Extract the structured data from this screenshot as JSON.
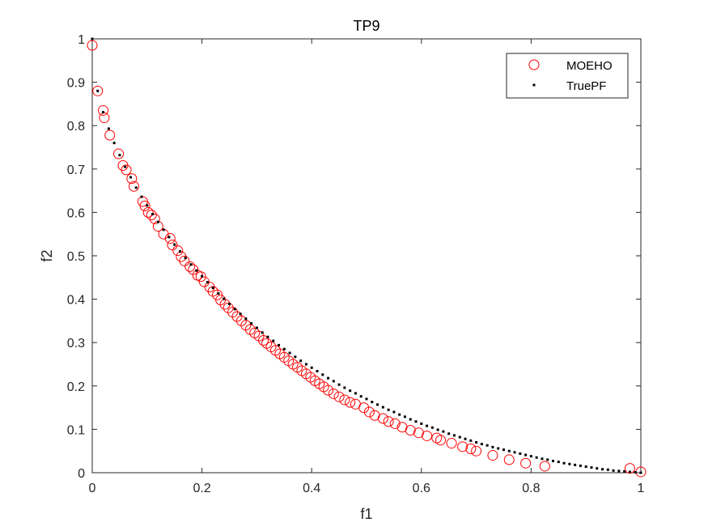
{
  "chart_data": {
    "type": "scatter",
    "title": "TP9",
    "xlabel": "f1",
    "ylabel": "f2",
    "xlim": [
      0,
      1
    ],
    "ylim": [
      0,
      1
    ],
    "xticks": [
      "0",
      "0.2",
      "0.4",
      "0.6",
      "0.8",
      "1"
    ],
    "yticks": [
      "0",
      "0.1",
      "0.2",
      "0.3",
      "0.4",
      "0.5",
      "0.6",
      "0.7",
      "0.8",
      "0.9",
      "1"
    ],
    "grid": false,
    "legend_position": "top-right",
    "series": [
      {
        "name": "MOEHO",
        "marker": "open-circle",
        "color": "#ff0000",
        "x": [
          0.0,
          0.01,
          0.02,
          0.022,
          0.032,
          0.048,
          0.056,
          0.062,
          0.072,
          0.076,
          0.092,
          0.096,
          0.102,
          0.108,
          0.114,
          0.12,
          0.13,
          0.142,
          0.146,
          0.156,
          0.162,
          0.168,
          0.178,
          0.184,
          0.192,
          0.198,
          0.204,
          0.214,
          0.22,
          0.228,
          0.234,
          0.242,
          0.248,
          0.256,
          0.264,
          0.272,
          0.28,
          0.288,
          0.296,
          0.304,
          0.312,
          0.318,
          0.326,
          0.334,
          0.342,
          0.35,
          0.358,
          0.366,
          0.374,
          0.382,
          0.39,
          0.398,
          0.406,
          0.414,
          0.422,
          0.43,
          0.44,
          0.45,
          0.46,
          0.47,
          0.48,
          0.495,
          0.505,
          0.515,
          0.53,
          0.54,
          0.552,
          0.565,
          0.58,
          0.595,
          0.61,
          0.628,
          0.635,
          0.655,
          0.675,
          0.69,
          0.7,
          0.73,
          0.76,
          0.79,
          0.825,
          0.98,
          1.0
        ],
        "y": [
          0.985,
          0.88,
          0.835,
          0.818,
          0.778,
          0.735,
          0.708,
          0.698,
          0.678,
          0.66,
          0.625,
          0.615,
          0.6,
          0.594,
          0.585,
          0.568,
          0.55,
          0.54,
          0.525,
          0.512,
          0.498,
          0.488,
          0.475,
          0.468,
          0.455,
          0.452,
          0.44,
          0.428,
          0.418,
          0.41,
          0.398,
          0.388,
          0.38,
          0.37,
          0.36,
          0.35,
          0.34,
          0.33,
          0.322,
          0.315,
          0.305,
          0.298,
          0.29,
          0.282,
          0.274,
          0.266,
          0.258,
          0.25,
          0.243,
          0.235,
          0.228,
          0.22,
          0.212,
          0.205,
          0.198,
          0.19,
          0.182,
          0.175,
          0.168,
          0.162,
          0.158,
          0.15,
          0.14,
          0.132,
          0.125,
          0.118,
          0.113,
          0.105,
          0.098,
          0.092,
          0.085,
          0.08,
          0.075,
          0.068,
          0.06,
          0.055,
          0.05,
          0.04,
          0.03,
          0.022,
          0.015,
          0.01,
          0.002
        ]
      },
      {
        "name": "TruePF",
        "marker": "dot",
        "color": "#000000",
        "x": [
          0.0,
          0.01,
          0.02,
          0.03,
          0.04,
          0.05,
          0.06,
          0.07,
          0.08,
          0.09,
          0.1,
          0.11,
          0.12,
          0.13,
          0.14,
          0.15,
          0.16,
          0.17,
          0.18,
          0.19,
          0.2,
          0.21,
          0.22,
          0.23,
          0.24,
          0.25,
          0.26,
          0.27,
          0.28,
          0.29,
          0.3,
          0.31,
          0.32,
          0.33,
          0.34,
          0.35,
          0.36,
          0.37,
          0.38,
          0.39,
          0.4,
          0.41,
          0.42,
          0.43,
          0.44,
          0.45,
          0.46,
          0.47,
          0.48,
          0.49,
          0.5,
          0.51,
          0.52,
          0.53,
          0.54,
          0.55,
          0.56,
          0.57,
          0.58,
          0.59,
          0.6,
          0.61,
          0.62,
          0.63,
          0.64,
          0.65,
          0.66,
          0.67,
          0.68,
          0.69,
          0.7,
          0.71,
          0.72,
          0.73,
          0.74,
          0.75,
          0.76,
          0.77,
          0.78,
          0.79,
          0.8,
          0.81,
          0.82,
          0.83,
          0.84,
          0.85,
          0.86,
          0.87,
          0.88,
          0.89,
          0.9,
          0.91,
          0.92,
          0.93,
          0.94,
          0.95,
          0.96,
          0.97,
          0.98,
          0.99,
          1.0
        ],
        "y": [
          1.0,
          0.88,
          0.831,
          0.793,
          0.76,
          0.732,
          0.705,
          0.681,
          0.657,
          0.636,
          0.616,
          0.596,
          0.578,
          0.56,
          0.543,
          0.526,
          0.51,
          0.495,
          0.48,
          0.466,
          0.453,
          0.439,
          0.426,
          0.413,
          0.401,
          0.389,
          0.377,
          0.366,
          0.355,
          0.344,
          0.334,
          0.323,
          0.313,
          0.304,
          0.294,
          0.285,
          0.276,
          0.267,
          0.258,
          0.25,
          0.242,
          0.234,
          0.226,
          0.218,
          0.211,
          0.203,
          0.196,
          0.189,
          0.183,
          0.176,
          0.17,
          0.163,
          0.157,
          0.151,
          0.145,
          0.14,
          0.134,
          0.129,
          0.123,
          0.118,
          0.113,
          0.108,
          0.104,
          0.099,
          0.095,
          0.09,
          0.086,
          0.082,
          0.078,
          0.074,
          0.07,
          0.066,
          0.063,
          0.059,
          0.056,
          0.053,
          0.05,
          0.047,
          0.044,
          0.041,
          0.038,
          0.035,
          0.032,
          0.03,
          0.027,
          0.025,
          0.022,
          0.02,
          0.018,
          0.016,
          0.014,
          0.012,
          0.01,
          0.008,
          0.007,
          0.005,
          0.004,
          0.003,
          0.002,
          0.001,
          0.0
        ]
      }
    ]
  }
}
